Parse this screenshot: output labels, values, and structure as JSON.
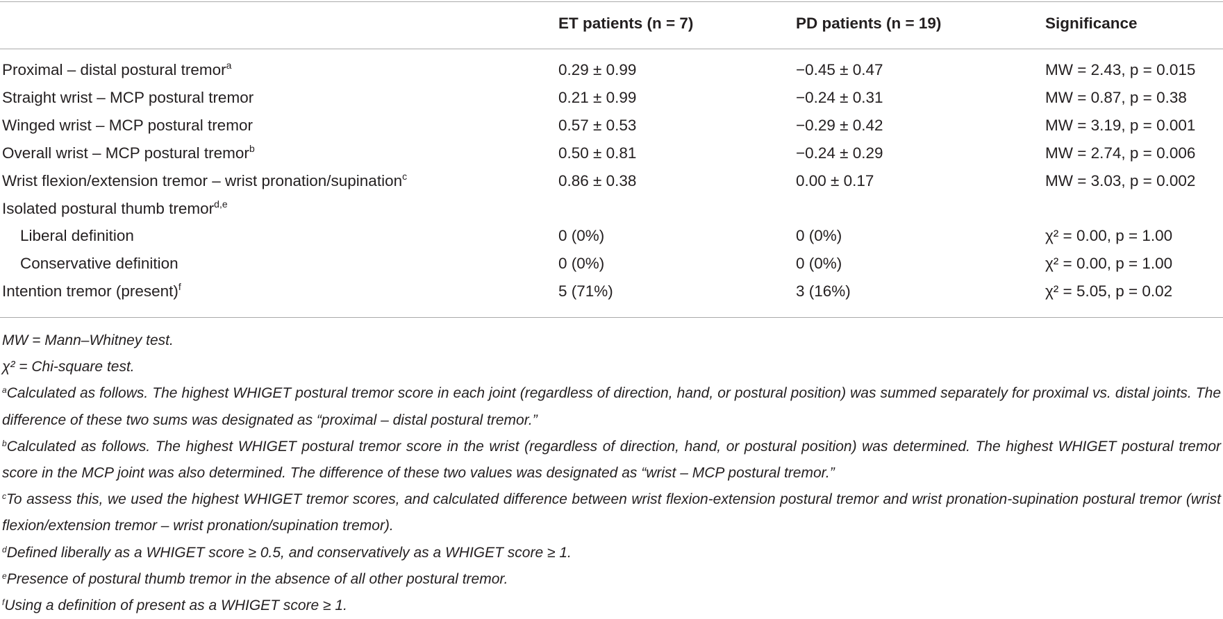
{
  "table": {
    "columns": [
      "ET patients (n = 7)",
      "PD patients (n = 19)",
      "Significance"
    ],
    "rows": [
      {
        "label": "Proximal – distal postural tremor",
        "note": "a",
        "cells": [
          "0.29 ± 0.99",
          "−0.45 ± 0.47",
          "MW = 2.43, p = 0.015"
        ]
      },
      {
        "label": "Straight wrist – MCP postural tremor",
        "cells": [
          "0.21 ± 0.99",
          "−0.24 ± 0.31",
          "MW = 0.87, p = 0.38"
        ]
      },
      {
        "label": "Winged wrist – MCP postural tremor",
        "cells": [
          "0.57 ± 0.53",
          "−0.29 ± 0.42",
          "MW = 3.19, p = 0.001"
        ]
      },
      {
        "label": "Overall wrist – MCP postural tremor",
        "note": "b",
        "cells": [
          "0.50 ± 0.81",
          "−0.24 ± 0.29",
          "MW = 2.74, p = 0.006"
        ]
      },
      {
        "label": "Wrist flexion/extension tremor – wrist pronation/supination",
        "note": "c",
        "cells": [
          "0.86 ± 0.38",
          "0.00 ± 0.17",
          "MW = 3.03, p = 0.002"
        ]
      },
      {
        "label": "Isolated postural thumb tremor",
        "note": "d,e",
        "subrows": [
          {
            "label": "Liberal definition",
            "cells": [
              "0 (0%)",
              "0 (0%)",
              "χ² = 0.00, p = 1.00"
            ]
          },
          {
            "label": "Conservative definition",
            "cells": [
              "0 (0%)",
              "0 (0%)",
              "χ² = 0.00, p = 1.00"
            ]
          }
        ]
      },
      {
        "label": "Intention tremor (present)",
        "note": "f",
        "cells": [
          "5 (71%)",
          "3 (16%)",
          "χ² = 5.05, p = 0.02"
        ]
      }
    ]
  },
  "footnotes": [
    {
      "text": "MW = Mann–Whitney test."
    },
    {
      "text": "χ² = Chi-square test."
    },
    {
      "marker": "a",
      "text": "Calculated as follows. The highest WHIGET postural tremor score in each joint (regardless of direction, hand, or postural position) was summed separately for proximal vs. distal joints. The difference of these two sums was designated as “proximal – distal postural tremor.”"
    },
    {
      "marker": "b",
      "text": "Calculated as follows. The highest WHIGET postural tremor score in the wrist (regardless of direction, hand, or postural position) was determined. The highest WHIGET postural tremor score in the MCP joint was also determined. The difference of these two values was designated as “wrist – MCP postural tremor.”"
    },
    {
      "marker": "c",
      "text": "To assess this, we used the highest WHIGET tremor scores, and calculated difference between wrist flexion-extension postural tremor and wrist pronation-supination postural tremor (wrist flexion/extension tremor – wrist pronation/supination tremor)."
    },
    {
      "marker": "d",
      "text": "Defined liberally as a WHIGET score ≥ 0.5, and conservatively as a WHIGET score ≥ 1."
    },
    {
      "marker": "e",
      "text": "Presence of postural thumb tremor in the absence of all other postural tremor."
    },
    {
      "marker": "f",
      "text": "Using a definition of present as a WHIGET score ≥ 1."
    }
  ]
}
